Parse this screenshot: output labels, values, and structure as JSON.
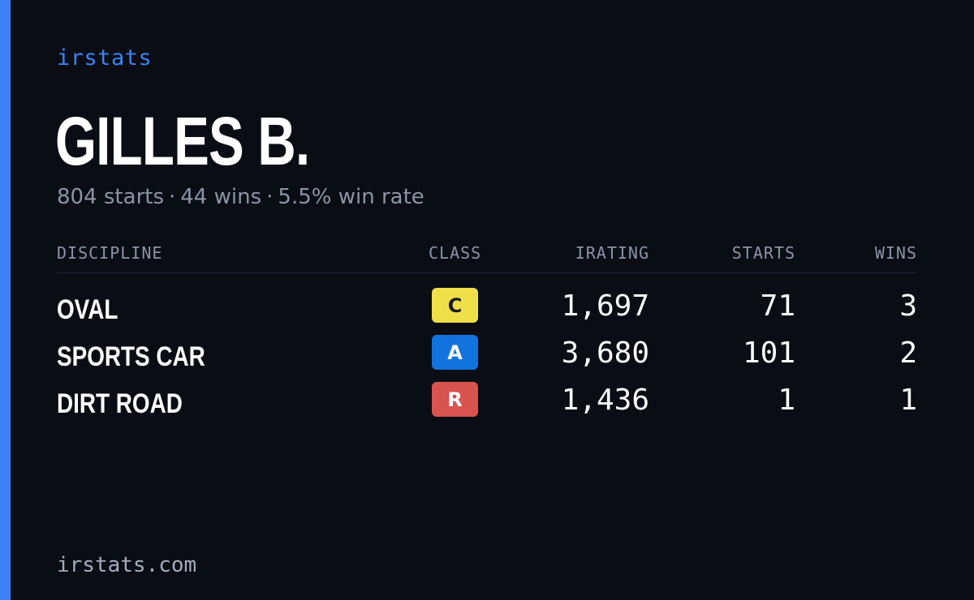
{
  "brand": "irstats",
  "player": {
    "name": "GILLES B.",
    "starts_text": "804 starts",
    "wins_text": "44 wins",
    "win_rate_text": "5.5% win rate",
    "separator": "·"
  },
  "table": {
    "headers": {
      "discipline": "DISCIPLINE",
      "class": "CLASS",
      "irating": "IRATING",
      "starts": "STARTS",
      "wins": "WINS"
    },
    "rows": [
      {
        "discipline": "OVAL",
        "class": "C",
        "class_bg": "#efe04a",
        "class_fg": "#1a1a1a",
        "irating": "1,697",
        "starts": "71",
        "wins": "3"
      },
      {
        "discipline": "SPORTS CAR",
        "class": "A",
        "class_bg": "#1273de",
        "class_fg": "#ffffff",
        "irating": "3,680",
        "starts": "101",
        "wins": "2"
      },
      {
        "discipline": "DIRT ROAD",
        "class": "R",
        "class_bg": "#d9534f",
        "class_fg": "#ffffff",
        "irating": "1,436",
        "starts": "1",
        "wins": "1"
      }
    ]
  },
  "footer": {
    "url": "irstats.com"
  },
  "colors": {
    "accent": "#3b82f6",
    "background": "#0a0d14"
  }
}
